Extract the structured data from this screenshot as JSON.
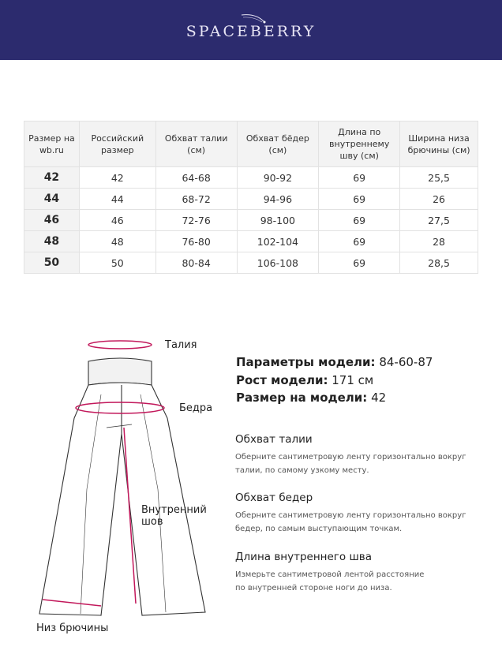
{
  "brand": {
    "name": "SPACEBERRY",
    "color": "#2c2b6e"
  },
  "table": {
    "headers": [
      "Размер на wb.ru",
      "Российский размер",
      "Обхват талии (см)",
      "Обхват бёдер (см)",
      "Длина по внутреннему шву (см)",
      "Ширина низа брючины (см)"
    ],
    "rows": [
      [
        "42",
        "42",
        "64-68",
        "90-92",
        "69",
        "25,5"
      ],
      [
        "44",
        "44",
        "68-72",
        "94-96",
        "69",
        "26"
      ],
      [
        "46",
        "46",
        "72-76",
        "98-100",
        "69",
        "27,5"
      ],
      [
        "48",
        "48",
        "76-80",
        "102-104",
        "69",
        "28"
      ],
      [
        "50",
        "50",
        "80-84",
        "106-108",
        "69",
        "28,5"
      ]
    ]
  },
  "diagram": {
    "waist": "Талия",
    "hips": "Бедра",
    "inseam": "Внутренний шов",
    "hem": "Низ брючины",
    "accent_color": "#c2185b"
  },
  "model": {
    "params_label": "Параметры модели:",
    "params_value": "84-60-87",
    "height_label": "Рост модели:",
    "height_value": "171 см",
    "size_label": "Размер на модели:",
    "size_value": "42"
  },
  "sections": [
    {
      "title": "Обхват талии",
      "text": "Оберните сантиметровую ленту горизонтально вокруг талии, по самому узкому месту."
    },
    {
      "title": "Обхват бедер",
      "text": "Оберните сантиметровую ленту горизонтально вокруг бедер, по самым выступающим точкам."
    },
    {
      "title": "Длина внутреннего шва",
      "text": "Измерьте сантиметровой лентой расстояние по внутренней стороне ноги до низа."
    }
  ]
}
